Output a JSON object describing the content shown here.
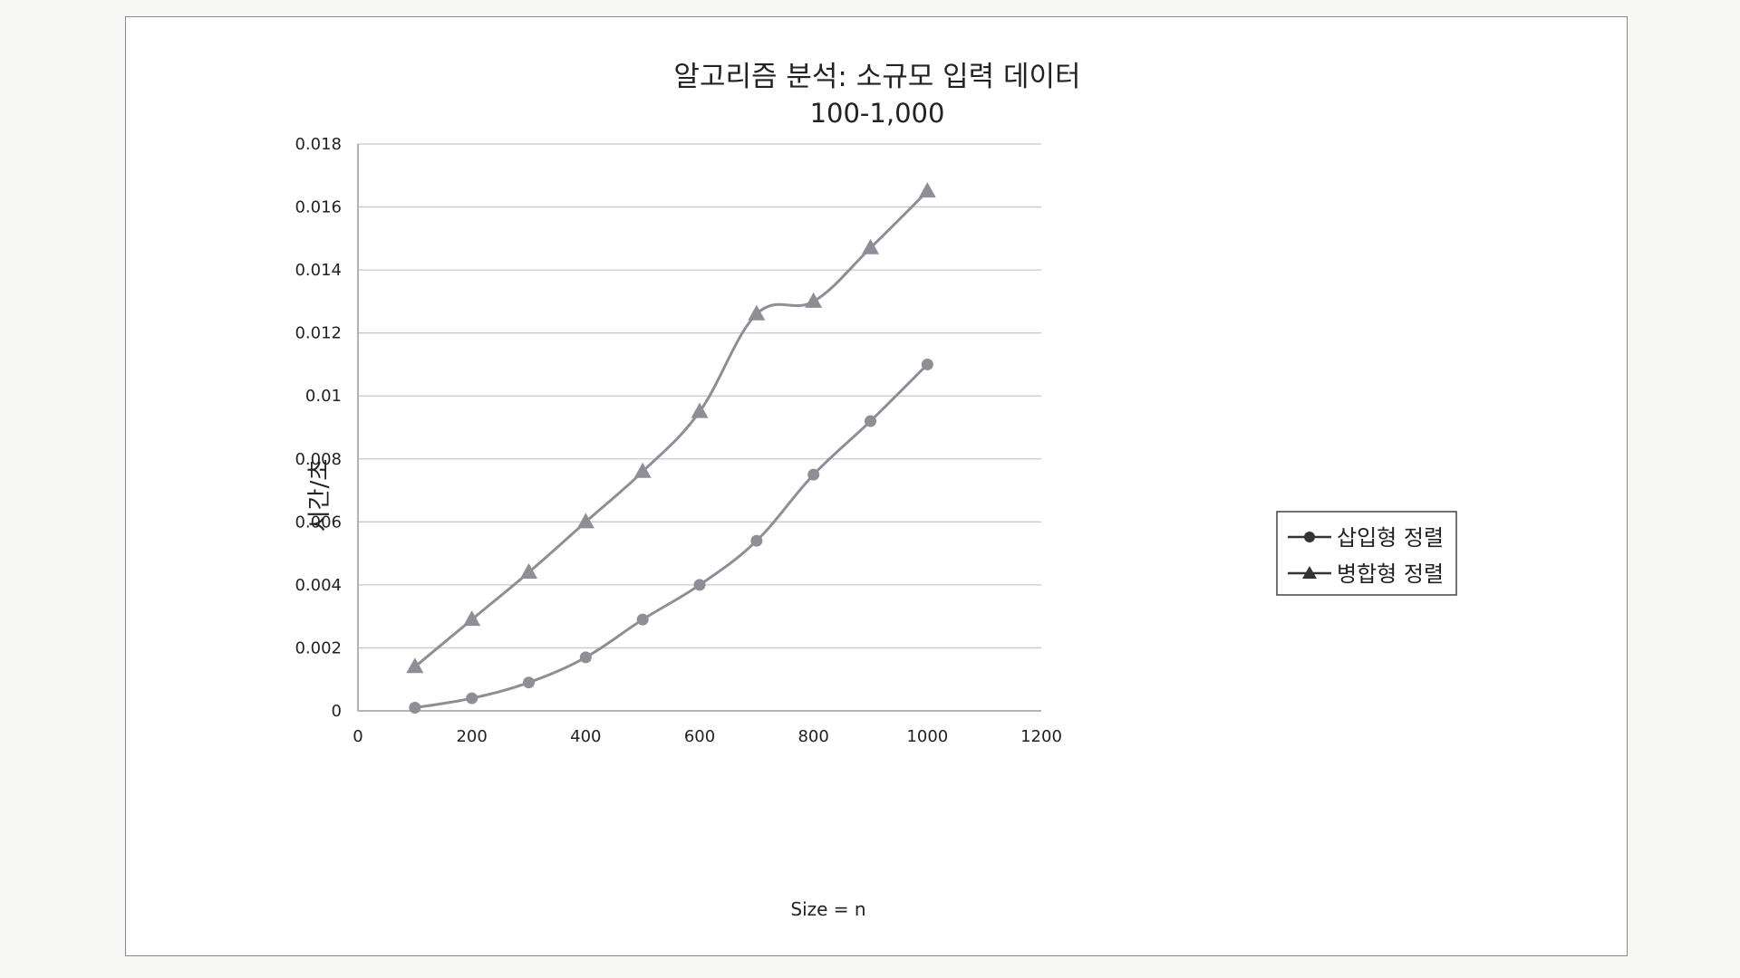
{
  "chart_data": {
    "type": "line",
    "title": "알고리즘 분석: 소규모 입력 데이터",
    "subtitle": "100-1,000",
    "xlabel": "Size = n",
    "ylabel": "시간/초",
    "xlim": [
      0,
      1200
    ],
    "ylim": [
      0,
      0.018
    ],
    "x_ticks": [
      "0",
      "200",
      "400",
      "600",
      "800",
      "1000",
      "1200"
    ],
    "y_ticks": [
      "0",
      "0.002",
      "0.004",
      "0.006",
      "0.008",
      "0.01",
      "0.012",
      "0.014",
      "0.016",
      "0.018"
    ],
    "grid": "horizontal",
    "legend_position": "right",
    "x": [
      100,
      200,
      300,
      400,
      500,
      600,
      700,
      800,
      900,
      1000
    ],
    "series": [
      {
        "name": "삽입형 정렬",
        "marker": "circle",
        "color": "#8e8e96",
        "values": [
          0.0001,
          0.0004,
          0.0009,
          0.0017,
          0.0029,
          0.004,
          0.0054,
          0.0075,
          0.0092,
          0.011
        ]
      },
      {
        "name": "병합형 정렬",
        "marker": "triangle",
        "color": "#8e8e96",
        "values": [
          0.0014,
          0.0029,
          0.0044,
          0.006,
          0.0076,
          0.0095,
          0.0126,
          0.013,
          0.0147,
          0.0165
        ]
      }
    ]
  }
}
